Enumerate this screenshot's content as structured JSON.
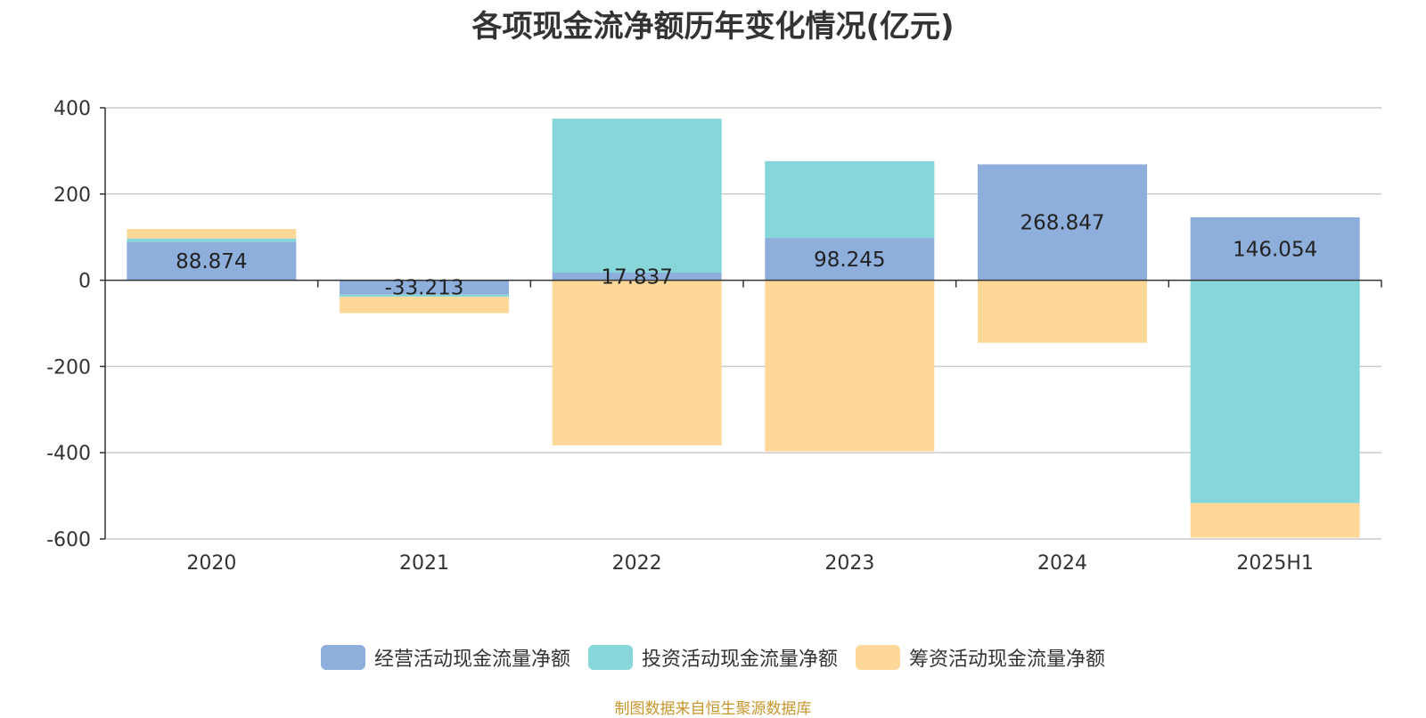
{
  "chart_data": {
    "type": "bar",
    "stacked": true,
    "title": "各项现金流净额历年变化情况(亿元)",
    "categories": [
      "2020",
      "2021",
      "2022",
      "2023",
      "2024",
      "2025H1"
    ],
    "series": [
      {
        "name": "经营活动现金流量净额",
        "color": "#8eaedb",
        "values": [
          88.874,
          -33.213,
          17.837,
          98.245,
          268.847,
          146.054
        ]
      },
      {
        "name": "投资活动现金流量净额",
        "color": "#87d6d9",
        "values": [
          8,
          -5,
          357,
          178,
          0,
          -517
        ]
      },
      {
        "name": "筹资活动现金流量净额",
        "color": "#fdd899",
        "values": [
          22,
          -38,
          -383,
          -397,
          -145,
          -80
        ]
      }
    ],
    "data_labels": [
      "88.874",
      "-33.213",
      "17.837",
      "98.245",
      "268.847",
      "146.054"
    ],
    "ylim": [
      -600,
      400
    ],
    "yticks": [
      400,
      200,
      0,
      -200,
      -400,
      -600
    ],
    "ytick_labels": [
      "400",
      "200",
      "0",
      "-200",
      "-400",
      "-600"
    ],
    "grid": true,
    "legend_position": "bottom"
  },
  "footer": {
    "source": "制图数据来自恒生聚源数据库"
  }
}
